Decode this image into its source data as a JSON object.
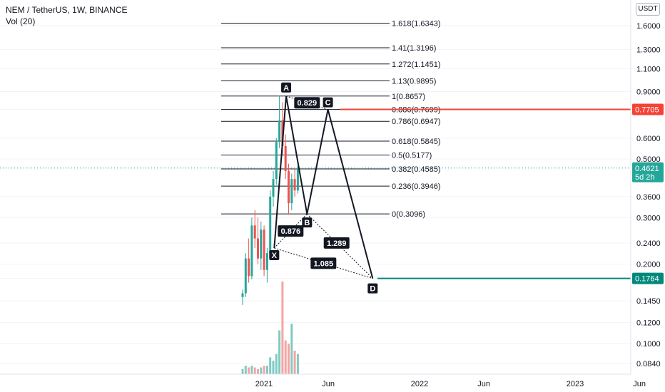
{
  "legend": {
    "symbol_line": "NEM / TetherUS, 1W, BINANCE",
    "volume_line": "Vol (20)"
  },
  "currency_button": "USDT",
  "colors": {
    "up": "#26a69a",
    "down": "#ef5350",
    "vol_up": "#80cbc4",
    "vol_down": "#f7a4a1",
    "pattern": "#131722",
    "last_price": "#26a69a",
    "target": "#00897b",
    "resistance": "#f44336"
  },
  "chart_data": {
    "type": "candlestick",
    "yscale": "log",
    "y_ticks": [
      "1.6000",
      "1.3000",
      "1.1000",
      "0.9000",
      "0.7705",
      "0.6000",
      "0.5000",
      "0.4621",
      "0.3600",
      "0.3000",
      "0.2400",
      "0.2000",
      "0.1764",
      "0.1450",
      "0.1200",
      "0.1000",
      "0.0840"
    ],
    "x_ticks": [
      "2021",
      "Jun",
      "2022",
      "Jun",
      "2023",
      "Jun"
    ],
    "price_labels": {
      "resistance": "0.7705",
      "last_price": "0.4621",
      "countdown": "5d 2h",
      "target": "0.1764"
    },
    "fib_levels": [
      {
        "label": "1.618(1.6343)",
        "price": 1.6343
      },
      {
        "label": "1.41(1.3196)",
        "price": 1.3196
      },
      {
        "label": "1.272(1.1451)",
        "price": 1.1451
      },
      {
        "label": "1.13(0.9895)",
        "price": 0.9895
      },
      {
        "label": "1(0.8657)",
        "price": 0.8657
      },
      {
        "label": "0.886(0.7699)",
        "price": 0.7699
      },
      {
        "label": "0.786(0.6947)",
        "price": 0.6947
      },
      {
        "label": "0.618(0.5845)",
        "price": 0.5845
      },
      {
        "label": "0.5(0.5177)",
        "price": 0.5177
      },
      {
        "label": "0.382(0.4585)",
        "price": 0.4585
      },
      {
        "label": "0.236(0.3946)",
        "price": 0.3946
      },
      {
        "label": "0(0.3096)",
        "price": 0.3096
      }
    ],
    "pattern_points": [
      {
        "name": "X",
        "date": "2021-01-25",
        "price": 0.23
      },
      {
        "name": "A",
        "date": "2021-02-22",
        "price": 0.8657
      },
      {
        "name": "B",
        "date": "2021-04-12",
        "price": 0.3096
      },
      {
        "name": "C",
        "date": "2021-05-31",
        "price": 0.7699
      },
      {
        "name": "D",
        "date": "2021-09-13",
        "price": 0.1764
      }
    ],
    "ratios": [
      {
        "label": "0.876",
        "between": "X-B"
      },
      {
        "label": "0.829",
        "between": "A-C"
      },
      {
        "label": "1.289",
        "between": "B-D"
      },
      {
        "label": "1.085",
        "between": "X-D"
      }
    ],
    "candles": [
      {
        "o": 0.15,
        "h": 0.16,
        "l": 0.14,
        "c": 0.155,
        "v": 3
      },
      {
        "o": 0.155,
        "h": 0.22,
        "l": 0.15,
        "c": 0.21,
        "v": 5
      },
      {
        "o": 0.21,
        "h": 0.25,
        "l": 0.17,
        "c": 0.18,
        "v": 4
      },
      {
        "o": 0.18,
        "h": 0.3,
        "l": 0.175,
        "c": 0.28,
        "v": 5
      },
      {
        "o": 0.28,
        "h": 0.32,
        "l": 0.23,
        "c": 0.25,
        "v": 4
      },
      {
        "o": 0.25,
        "h": 0.3,
        "l": 0.2,
        "c": 0.21,
        "v": 3
      },
      {
        "o": 0.21,
        "h": 0.29,
        "l": 0.19,
        "c": 0.27,
        "v": 4
      },
      {
        "o": 0.27,
        "h": 0.28,
        "l": 0.18,
        "c": 0.19,
        "v": 5
      },
      {
        "o": 0.19,
        "h": 0.23,
        "l": 0.17,
        "c": 0.22,
        "v": 5
      },
      {
        "o": 0.22,
        "h": 0.38,
        "l": 0.21,
        "c": 0.36,
        "v": 10
      },
      {
        "o": 0.36,
        "h": 0.45,
        "l": 0.33,
        "c": 0.42,
        "v": 8
      },
      {
        "o": 0.42,
        "h": 0.6,
        "l": 0.4,
        "c": 0.58,
        "v": 12
      },
      {
        "o": 0.58,
        "h": 0.866,
        "l": 0.55,
        "c": 0.7,
        "v": 26
      },
      {
        "o": 0.7,
        "h": 0.82,
        "l": 0.52,
        "c": 0.56,
        "v": 55
      },
      {
        "o": 0.56,
        "h": 0.62,
        "l": 0.42,
        "c": 0.45,
        "v": 20
      },
      {
        "o": 0.45,
        "h": 0.48,
        "l": 0.31,
        "c": 0.34,
        "v": 18
      },
      {
        "o": 0.34,
        "h": 0.44,
        "l": 0.32,
        "c": 0.42,
        "v": 30
      },
      {
        "o": 0.42,
        "h": 0.46,
        "l": 0.36,
        "c": 0.38,
        "v": 14
      },
      {
        "o": 0.38,
        "h": 0.47,
        "l": 0.37,
        "c": 0.462,
        "v": 12
      }
    ]
  }
}
